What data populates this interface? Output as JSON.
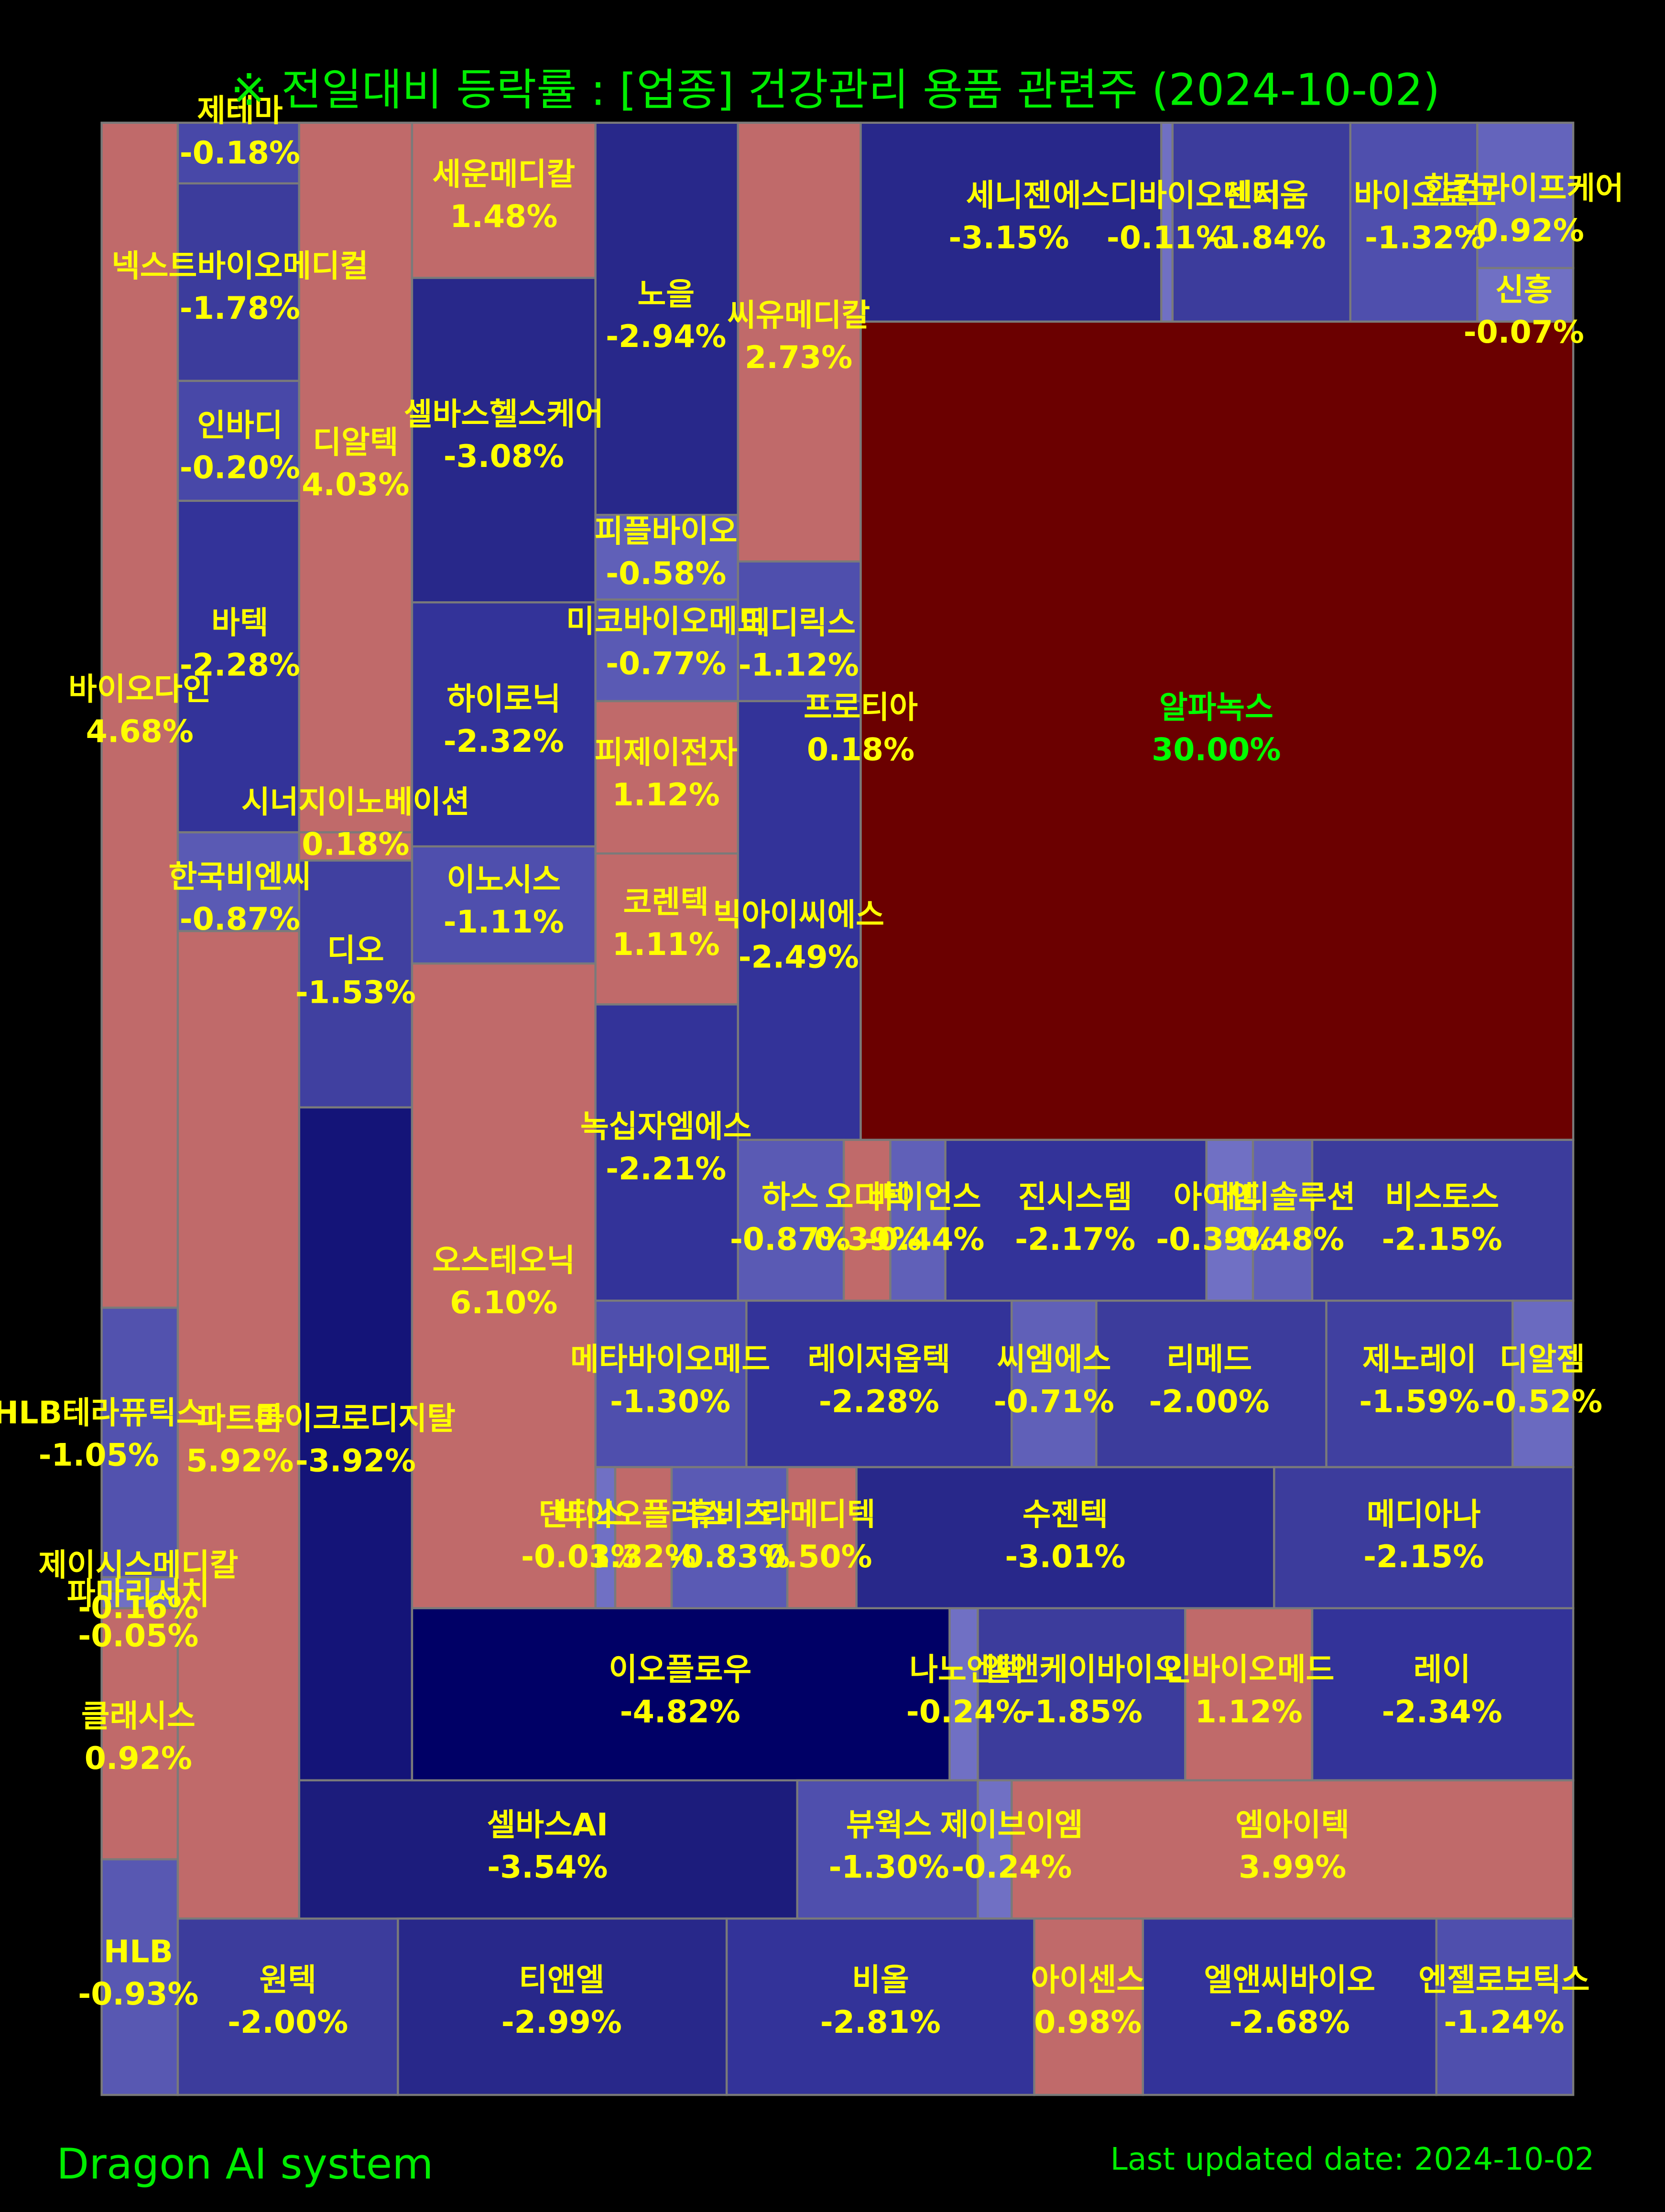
{
  "title": "※ 전일대비 등락률 : [업종] 건강관리 용품 관련주 (2024-10-02)",
  "label_color": "#ffff00",
  "tiles": [
    {
      "name": "바이오다인",
      "change": "4.68%",
      "color": "#c06a6a"
    },
    {
      "name": "HLB테라퓨틱스",
      "change": "-1.05%",
      "color": "#5252ae"
    },
    {
      "name": "제이시스메디칼",
      "change": "-0.16%",
      "color": "#7070c4"
    },
    {
      "name": "파마리서치",
      "change": "-0.05%",
      "color": "#7070c4"
    },
    {
      "name": "클래시스",
      "change": "0.92%",
      "color": "#c06a6a"
    },
    {
      "name": "HLB",
      "change": "-0.93%",
      "color": "#5858b2"
    },
    {
      "name": "제테마",
      "change": "-0.18%",
      "color": "#4848a8"
    },
    {
      "name": "넥스트바이오메디컬",
      "change": "-1.78%",
      "color": "#3c3c9c"
    },
    {
      "name": "인바디",
      "change": "-0.20%",
      "color": "#4848a8"
    },
    {
      "name": "바텍",
      "change": "-2.28%",
      "color": "#333399"
    },
    {
      "name": "한국비엔씨",
      "change": "-0.87%",
      "color": "#5a5ab4"
    },
    {
      "name": "파트론",
      "change": "5.92%",
      "color": "#c06a6a"
    },
    {
      "name": "원텍",
      "change": "-2.00%",
      "color": "#3c3c9c"
    },
    {
      "name": "디알텍",
      "change": "4.03%",
      "color": "#c06a6a"
    },
    {
      "name": "시너지이노베이션",
      "change": "0.18%",
      "color": "#c06a6a"
    },
    {
      "name": "디오",
      "change": "-1.53%",
      "color": "#4040a0"
    },
    {
      "name": "마이크로디지탈",
      "change": "-3.92%",
      "color": "#141478"
    },
    {
      "name": "셀바스AI",
      "change": "-3.54%",
      "color": "#1c1c7c"
    },
    {
      "name": "세운메디칼",
      "change": "1.48%",
      "color": "#c06a6a"
    },
    {
      "name": "셀바스헬스케어",
      "change": "-3.08%",
      "color": "#28288a"
    },
    {
      "name": "하이로닉",
      "change": "-2.32%",
      "color": "#333399"
    },
    {
      "name": "이노시스",
      "change": "-1.11%",
      "color": "#4f4fad"
    },
    {
      "name": "오스테오닉",
      "change": "6.10%",
      "color": "#c06a6a"
    },
    {
      "name": "이오플로우",
      "change": "-4.82%",
      "color": "#000066"
    },
    {
      "name": "티앤엘",
      "change": "-2.99%",
      "color": "#28288a"
    },
    {
      "name": "노을",
      "change": "-2.94%",
      "color": "#28288a"
    },
    {
      "name": "피플바이오",
      "change": "-0.58%",
      "color": "#6060b8"
    },
    {
      "name": "미코바이오메드",
      "change": "-0.77%",
      "color": "#5a5ab4"
    },
    {
      "name": "피제이전자",
      "change": "1.12%",
      "color": "#c06a6a"
    },
    {
      "name": "코렌텍",
      "change": "1.11%",
      "color": "#c06a6a"
    },
    {
      "name": "녹십자엠에스",
      "change": "-2.21%",
      "color": "#333399"
    },
    {
      "name": "씨유메디칼",
      "change": "2.73%",
      "color": "#c06a6a"
    },
    {
      "name": "메디릭스",
      "change": "-1.12%",
      "color": "#4f4fad"
    },
    {
      "name": "프로티아",
      "change": "0.18%",
      "color": "#c06a6a"
    },
    {
      "name": "빅아이씨에스",
      "change": "-2.49%",
      "color": "#333399"
    },
    {
      "name": "세니젠",
      "change": "-3.15%",
      "color": "#28288a"
    },
    {
      "name": "에스디바이오센서",
      "change": "-0.11%",
      "color": "#7070c4"
    },
    {
      "name": "덴티움",
      "change": "-1.84%",
      "color": "#3c3c9c"
    },
    {
      "name": "바이오로그",
      "change": "-1.32%",
      "color": "#4f4fad"
    },
    {
      "name": "한컴라이프케어",
      "change": "-0.92%",
      "color": "#6464bc"
    },
    {
      "name": "신흥",
      "change": "-0.07%",
      "color": "#7070c4"
    },
    {
      "name": "알파녹스",
      "change": "30.00%",
      "color": "#6b0000",
      "label_color": "#00ff00"
    },
    {
      "name": "하스",
      "change": "-0.87%",
      "color": "#5a5ab4"
    },
    {
      "name": "오디텍",
      "change": "0.39%",
      "color": "#c06a6a"
    },
    {
      "name": "바이언스",
      "change": "-0.44%",
      "color": "#6060b8"
    },
    {
      "name": "진시스템",
      "change": "-2.17%",
      "color": "#333399"
    },
    {
      "name": "아이엠",
      "change": "-0.39%",
      "color": "#7070c4"
    },
    {
      "name": "메디솔루션",
      "change": "-0.48%",
      "color": "#6060b8"
    },
    {
      "name": "비스토스",
      "change": "-2.15%",
      "color": "#3c3c9c"
    },
    {
      "name": "메타바이오메드",
      "change": "-1.30%",
      "color": "#4f4fad"
    },
    {
      "name": "레이저옵텍",
      "change": "-2.28%",
      "color": "#333399"
    },
    {
      "name": "씨엠에스",
      "change": "-0.71%",
      "color": "#6060b8"
    },
    {
      "name": "리메드",
      "change": "-2.00%",
      "color": "#3c3c9c"
    },
    {
      "name": "제노레이",
      "change": "-1.59%",
      "color": "#4040a0"
    },
    {
      "name": "디알젬",
      "change": "-0.52%",
      "color": "#6a6ac0"
    },
    {
      "name": "덴티스",
      "change": "-0.03%",
      "color": "#7070c4"
    },
    {
      "name": "바이오플러스",
      "change": "1.32%",
      "color": "#c06a6a"
    },
    {
      "name": "휴비츠",
      "change": "-0.83%",
      "color": "#5a5ab4"
    },
    {
      "name": "라메디텍",
      "change": "0.50%",
      "color": "#c06a6a"
    },
    {
      "name": "수젠텍",
      "change": "-3.01%",
      "color": "#28288a"
    },
    {
      "name": "메디아나",
      "change": "-2.15%",
      "color": "#3c3c9c"
    },
    {
      "name": "나노엔텍",
      "change": "-0.24%",
      "color": "#7070c4"
    },
    {
      "name": "엘앤케이바이오",
      "change": "-1.85%",
      "color": "#3c3c9c"
    },
    {
      "name": "인바이오메드",
      "change": "1.12%",
      "color": "#c06a6a"
    },
    {
      "name": "레이",
      "change": "-2.34%",
      "color": "#333399"
    },
    {
      "name": "뷰웍스",
      "change": "-1.30%",
      "color": "#4f4fad"
    },
    {
      "name": "제이브이엠",
      "change": "-0.24%",
      "color": "#7070c4"
    },
    {
      "name": "엠아이텍",
      "change": "3.99%",
      "color": "#c06a6a"
    },
    {
      "name": "비올",
      "change": "-2.81%",
      "color": "#333399"
    },
    {
      "name": "아이센스",
      "change": "0.98%",
      "color": "#c06a6a"
    },
    {
      "name": "엘앤씨바이오",
      "change": "-2.68%",
      "color": "#333399"
    },
    {
      "name": "엔젤로보틱스",
      "change": "-1.24%",
      "color": "#4f4fad"
    }
  ],
  "footer": {
    "brand": "Dragon AI system",
    "updated": "Last updated date: 2024-10-02"
  }
}
